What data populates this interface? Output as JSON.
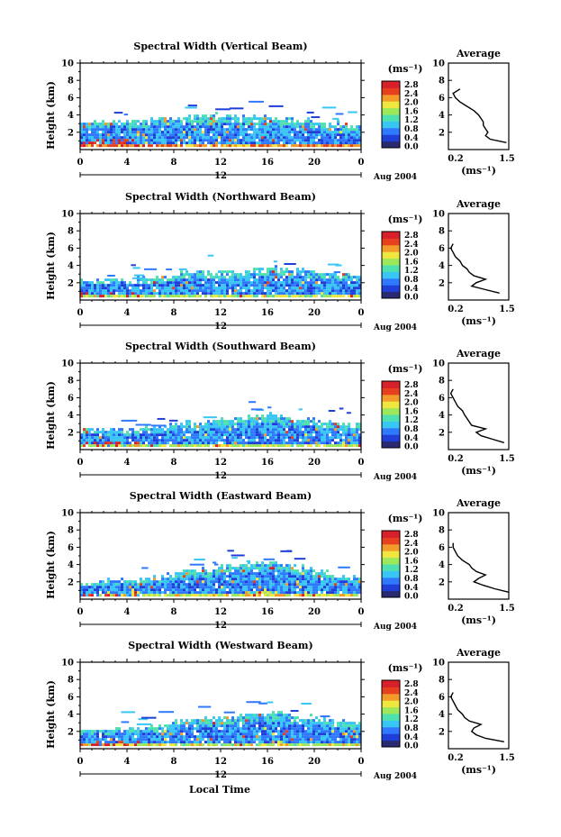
{
  "figure": {
    "xlabel": "Local Time",
    "x_ticks": [
      "0",
      "4",
      "8",
      "12",
      "16",
      "20",
      "0"
    ],
    "date_day": "12",
    "date_label": "Aug 2004",
    "ylabel": "Height (km)",
    "y_ticks": [
      "10",
      "8",
      "6",
      "4",
      "2"
    ],
    "colorbar_unit": "(ms⁻¹)",
    "colorbar_ticks": [
      "2.8",
      "2.4",
      "2.0",
      "1.6",
      "1.2",
      "0.8",
      "0.4",
      "0.0"
    ],
    "profile_title": "Average",
    "profile_xlabel": "(ms⁻¹)",
    "profile_x_ticks": [
      "0.2",
      "1.5"
    ],
    "profile_y_ticks": [
      "10",
      "8",
      "6",
      "4",
      "2"
    ]
  },
  "colors": {
    "colormap": [
      "#2a2a72",
      "#1f3fd8",
      "#2f79ff",
      "#38c6f5",
      "#4fe0b0",
      "#9ce85a",
      "#f0e640",
      "#f29b2a",
      "#e7401f",
      "#d8202a"
    ]
  },
  "chart_data": [
    {
      "type": "heatmap",
      "title": "Spectral Width (Vertical Beam)",
      "xlabel": "Local Time",
      "ylabel": "Height (km)",
      "xlim": [
        0,
        24
      ],
      "ylim": [
        0,
        10
      ],
      "zlim": [
        0,
        3.0
      ],
      "top_km": [
        3.0,
        3.2,
        3.3,
        3.2,
        3.1,
        3.3,
        3.5,
        3.6,
        3.7,
        3.8,
        3.9,
        3.9,
        3.8,
        3.8,
        3.7,
        3.7,
        3.6,
        3.4,
        3.2,
        3.2,
        3.1,
        3.0,
        2.9,
        2.8
      ],
      "strength": 0.9,
      "profile": {
        "title": "Average",
        "xlabel": "(ms⁻¹)",
        "xlim": [
          0.2,
          1.5
        ],
        "ylim": [
          0,
          10
        ],
        "height_km": [
          0.8,
          1.2,
          1.6,
          2.0,
          2.4,
          2.8,
          3.2,
          3.6,
          4.0,
          4.5,
          5.0,
          5.5,
          6.0,
          6.5,
          7.0
        ],
        "width_ms": [
          1.45,
          1.1,
          1.0,
          1.05,
          1.0,
          0.95,
          0.95,
          0.9,
          0.85,
          0.75,
          0.6,
          0.45,
          0.35,
          0.3,
          0.45
        ]
      }
    },
    {
      "type": "heatmap",
      "title": "Spectral Width (Northward Beam)",
      "xlabel": "Local Time",
      "ylabel": "Height (km)",
      "xlim": [
        0,
        24
      ],
      "ylim": [
        0,
        10
      ],
      "zlim": [
        0,
        3.0
      ],
      "top_km": [
        2.3,
        2.4,
        2.4,
        2.3,
        2.3,
        2.4,
        2.5,
        2.7,
        2.9,
        3.1,
        3.2,
        3.3,
        3.3,
        3.2,
        3.4,
        3.5,
        3.6,
        3.5,
        3.4,
        3.3,
        3.1,
        3.0,
        2.9,
        2.8
      ],
      "strength": 0.55,
      "profile": {
        "title": "Average",
        "xlabel": "(ms⁻¹)",
        "xlim": [
          0.2,
          1.5
        ],
        "ylim": [
          0,
          10
        ],
        "height_km": [
          0.8,
          1.2,
          1.6,
          2.0,
          2.4,
          2.8,
          3.2,
          3.6,
          4.0,
          4.5,
          5.0,
          5.5,
          6.0,
          6.5
        ],
        "width_ms": [
          1.3,
          1.0,
          0.7,
          0.8,
          1.0,
          0.75,
          0.65,
          0.6,
          0.5,
          0.45,
          0.35,
          0.3,
          0.25,
          0.3
        ]
      }
    },
    {
      "type": "heatmap",
      "title": "Spectral Width (Southward Beam)",
      "xlabel": "Local Time",
      "ylabel": "Height (km)",
      "xlim": [
        0,
        24
      ],
      "ylim": [
        0,
        10
      ],
      "zlim": [
        0,
        3.0
      ],
      "top_km": [
        2.2,
        2.3,
        2.2,
        2.2,
        2.3,
        2.4,
        2.5,
        2.6,
        2.8,
        3.0,
        3.1,
        3.2,
        3.4,
        3.6,
        3.8,
        4.0,
        3.9,
        3.7,
        3.5,
        3.3,
        3.1,
        3.0,
        2.9,
        2.8
      ],
      "strength": 0.6,
      "profile": {
        "title": "Average",
        "xlabel": "(ms⁻¹)",
        "xlim": [
          0.2,
          1.5
        ],
        "ylim": [
          0,
          10
        ],
        "height_km": [
          0.8,
          1.2,
          1.6,
          2.0,
          2.4,
          2.8,
          3.2,
          3.6,
          4.0,
          4.5,
          5.0,
          5.5,
          6.0,
          6.5,
          7.0
        ],
        "width_ms": [
          1.4,
          1.15,
          0.9,
          0.8,
          1.0,
          0.7,
          0.65,
          0.6,
          0.55,
          0.5,
          0.4,
          0.35,
          0.3,
          0.25,
          0.3
        ]
      }
    },
    {
      "type": "heatmap",
      "title": "Spectral Width (Eastward Beam)",
      "xlabel": "Local Time",
      "ylabel": "Height (km)",
      "xlim": [
        0,
        24
      ],
      "ylim": [
        0,
        10
      ],
      "zlim": [
        0,
        3.0
      ],
      "top_km": [
        1.8,
        1.9,
        2.0,
        2.0,
        2.1,
        2.3,
        2.5,
        2.7,
        2.9,
        3.1,
        3.3,
        3.5,
        3.7,
        3.9,
        4.1,
        4.3,
        4.2,
        4.0,
        3.7,
        3.4,
        3.1,
        2.9,
        2.6,
        2.4
      ],
      "strength": 0.65,
      "profile": {
        "title": "Average",
        "xlabel": "(ms⁻¹)",
        "xlim": [
          0.2,
          1.5
        ],
        "ylim": [
          0,
          10
        ],
        "height_km": [
          0.8,
          1.2,
          1.6,
          2.0,
          2.4,
          2.8,
          3.2,
          3.6,
          4.0,
          4.5,
          5.0,
          5.5,
          6.0,
          6.5
        ],
        "width_ms": [
          1.5,
          1.2,
          0.95,
          0.75,
          0.85,
          1.0,
          0.8,
          0.7,
          0.65,
          0.5,
          0.4,
          0.35,
          0.3,
          0.3
        ]
      }
    },
    {
      "type": "heatmap",
      "title": "Spectral Width (Westward Beam)",
      "xlabel": "Local Time",
      "ylabel": "Height (km)",
      "xlim": [
        0,
        24
      ],
      "ylim": [
        0,
        10
      ],
      "zlim": [
        0,
        3.0
      ],
      "top_km": [
        2.0,
        2.1,
        2.2,
        2.3,
        2.4,
        2.5,
        2.6,
        2.8,
        3.0,
        3.2,
        3.4,
        3.5,
        3.6,
        3.7,
        3.8,
        3.9,
        4.1,
        4.0,
        3.8,
        3.6,
        3.4,
        3.2,
        3.0,
        2.8
      ],
      "strength": 0.6,
      "profile": {
        "title": "Average",
        "xlabel": "(ms⁻¹)",
        "xlim": [
          0.2,
          1.5
        ],
        "ylim": [
          0,
          10
        ],
        "height_km": [
          0.8,
          1.2,
          1.6,
          2.0,
          2.4,
          2.8,
          3.2,
          3.6,
          4.0,
          4.5,
          5.0,
          5.5,
          6.0,
          6.5
        ],
        "width_ms": [
          1.4,
          1.0,
          0.8,
          0.7,
          0.75,
          0.9,
          0.65,
          0.55,
          0.5,
          0.4,
          0.35,
          0.3,
          0.25,
          0.3
        ]
      }
    }
  ]
}
